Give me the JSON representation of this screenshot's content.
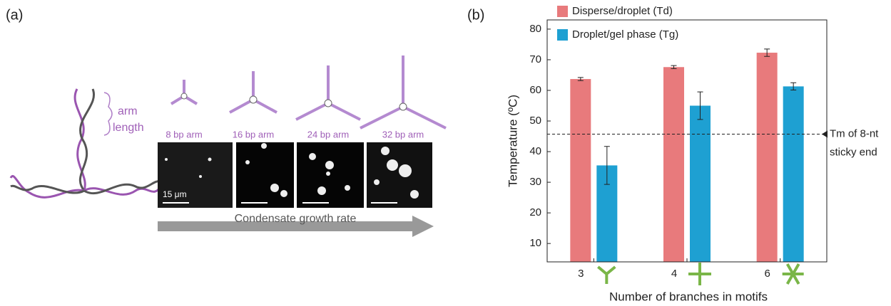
{
  "panel_a": {
    "label": "(a)",
    "arm_label": [
      "arm",
      "length"
    ],
    "arm_lengths": [
      "8 bp arm",
      "16 bp arm",
      "24 bp arm",
      "32 bp arm"
    ],
    "scale_bar": "15 μm",
    "arrow_label": "Condensate growth rate"
  },
  "chart_data": {
    "type": "bar",
    "panel_label": "(b)",
    "x_label": "Number of branches in motifs",
    "y_label": "Temperature (ºC)",
    "categories": [
      "3",
      "4",
      "6"
    ],
    "series": [
      {
        "name": "Disperse/droplet (Td)",
        "color": "#e87a7c",
        "values": [
          63.7,
          67.6,
          72.3
        ],
        "errors": [
          0.5,
          0.5,
          1.2
        ]
      },
      {
        "name": "Droplet/gel phase (Tg)",
        "color": "#1ea0d2",
        "values": [
          35.5,
          55.0,
          61.3
        ],
        "errors": [
          6.2,
          4.5,
          1.2
        ]
      }
    ],
    "ylim": [
      4,
      83
    ],
    "yticks": [
      10,
      20,
      30,
      40,
      50,
      60,
      70,
      80
    ],
    "reference_line": {
      "value": 45.7,
      "label": [
        "Tm of 8-nt",
        "sticky end"
      ]
    }
  }
}
